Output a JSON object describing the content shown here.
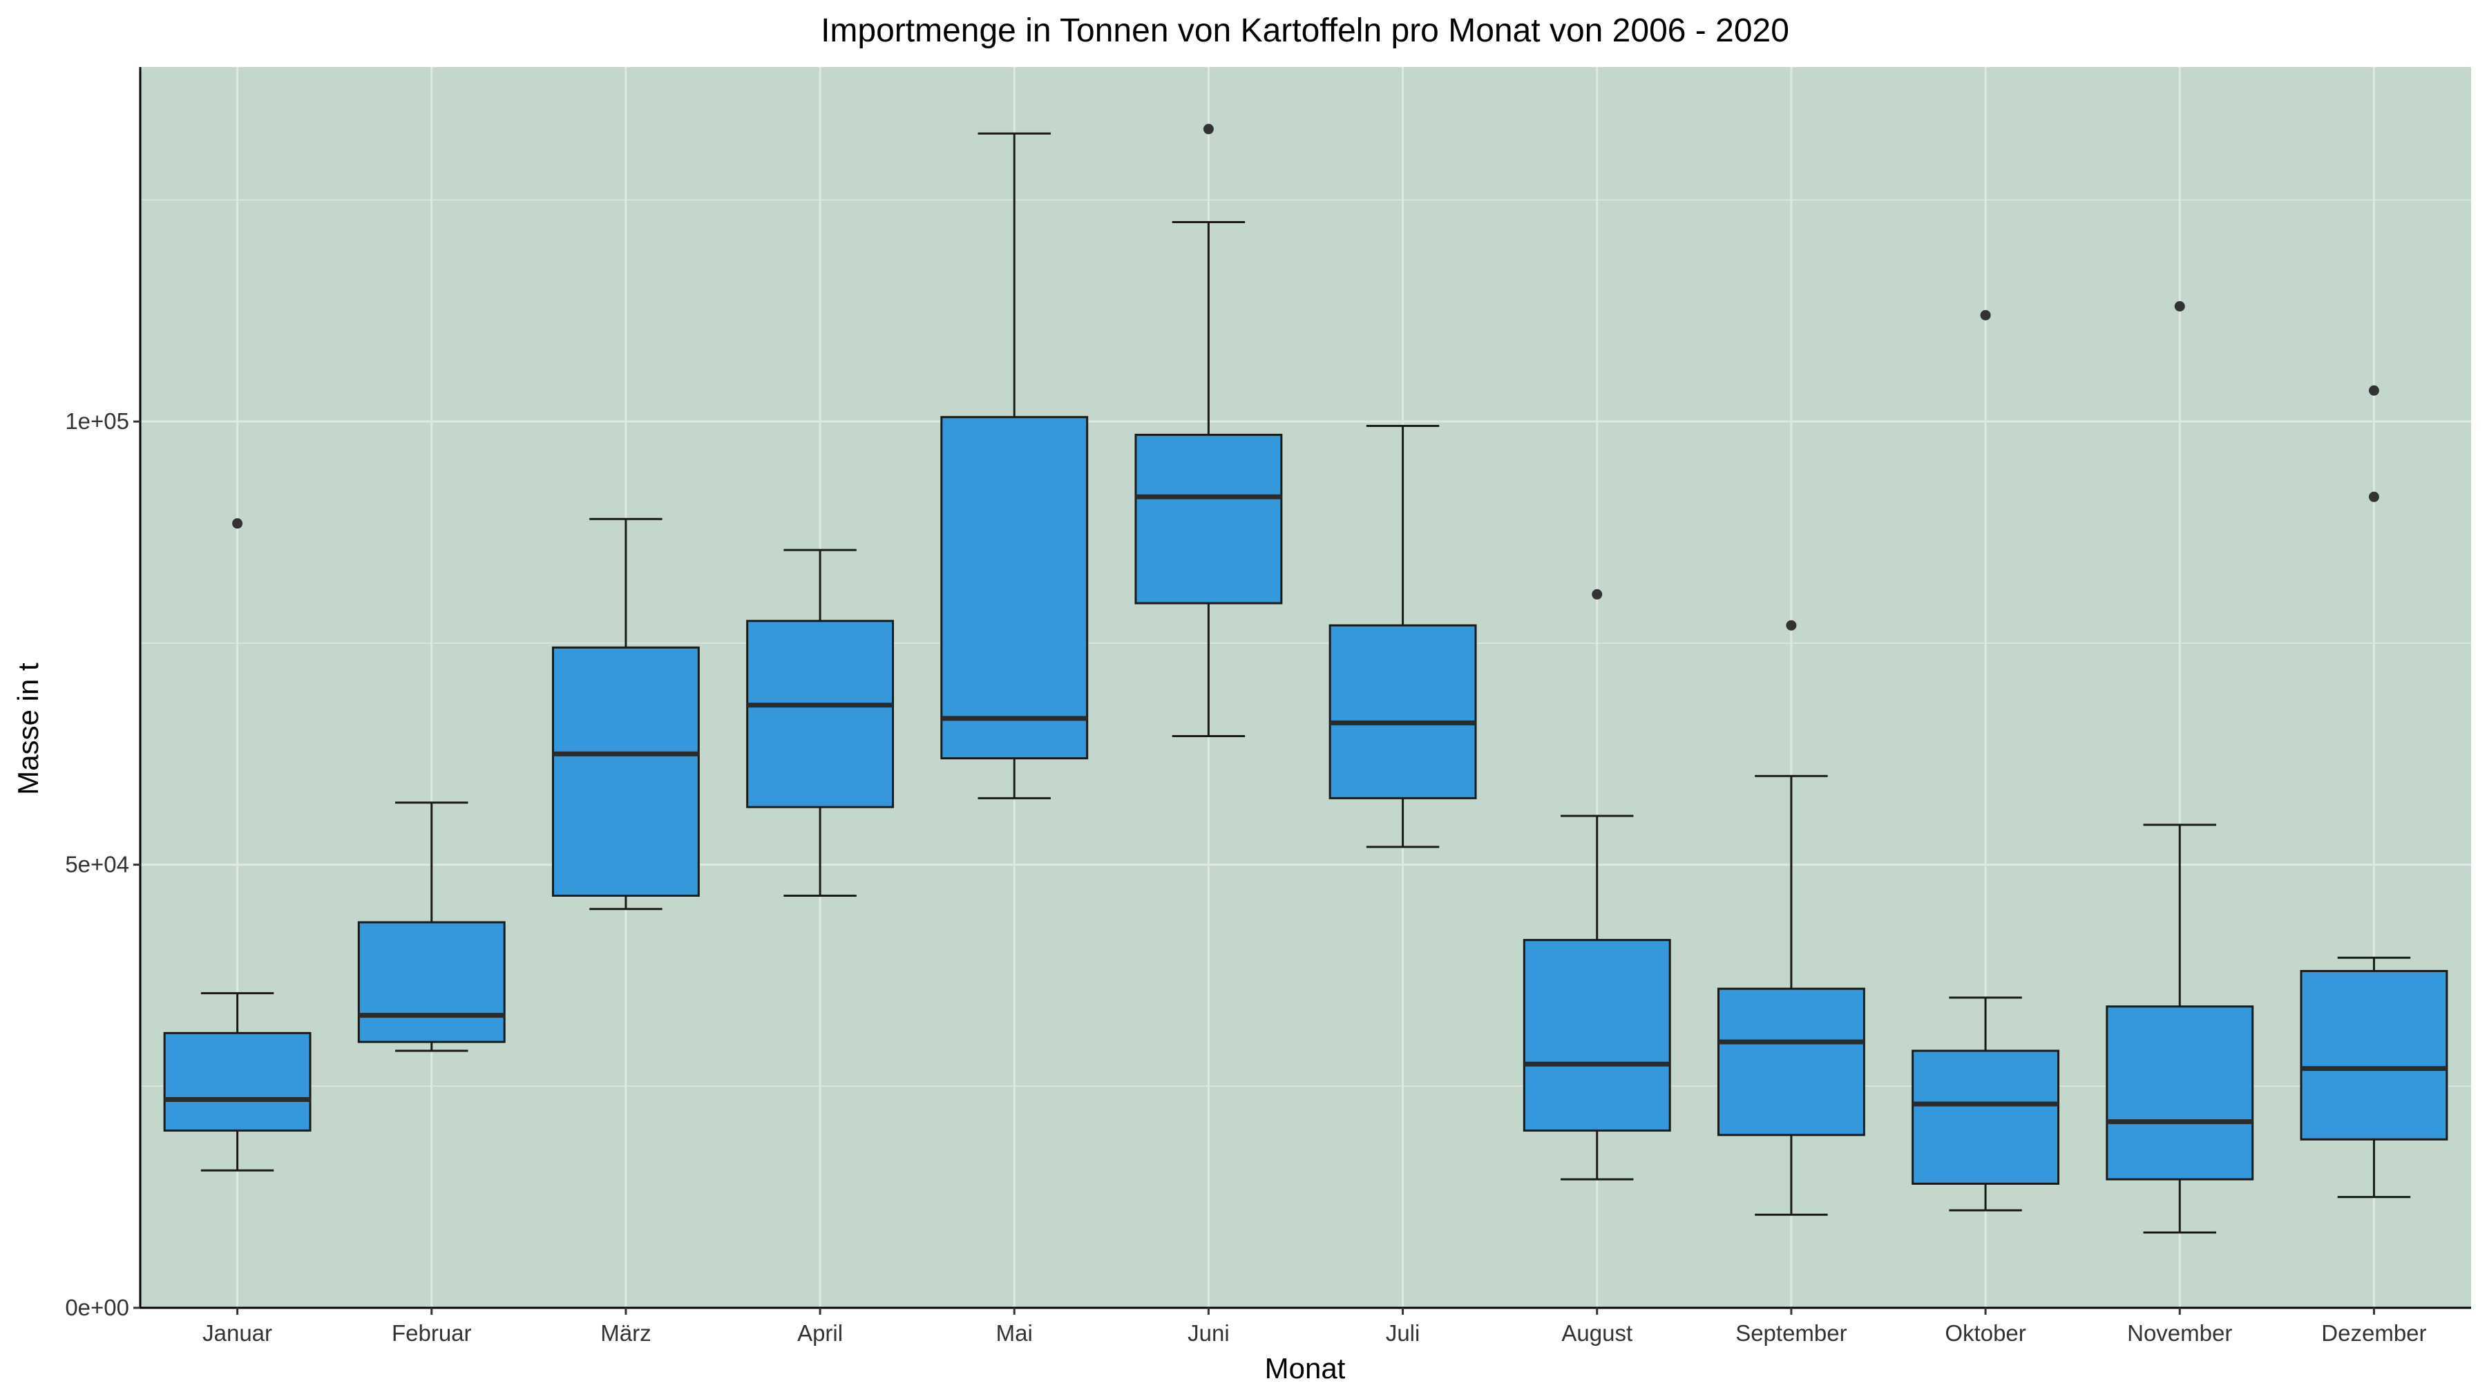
{
  "chart_data": {
    "type": "boxplot",
    "title": "Importmenge in Tonnen von Kartoffeln pro Monat von 2006 - 2020",
    "xlabel": "Monat",
    "ylabel": "Masse in t",
    "ylim": [
      0,
      140000
    ],
    "yticks": [
      0,
      50000,
      100000
    ],
    "ytick_labels": [
      "0e+00",
      "5e+04",
      "1e+05"
    ],
    "grid": true,
    "colors": {
      "panel": "#c3d7cd",
      "box_fill": "#3598db",
      "box_line": "#1a1a1a",
      "median": "#2b2b2b",
      "grid": "#dfe9e4",
      "outlier": "#333333"
    },
    "categories": [
      "Januar",
      "Februar",
      "März",
      "April",
      "Mai",
      "Juni",
      "Juli",
      "August",
      "September",
      "Oktober",
      "November",
      "Dezember"
    ],
    "boxes": [
      {
        "whisker_low": 15500,
        "q1": 20000,
        "median": 23500,
        "q3": 31000,
        "whisker_high": 35500,
        "outliers": [
          88500
        ]
      },
      {
        "whisker_low": 29000,
        "q1": 30000,
        "median": 33000,
        "q3": 43500,
        "whisker_high": 57000,
        "outliers": []
      },
      {
        "whisker_low": 45000,
        "q1": 46500,
        "median": 62500,
        "q3": 74500,
        "whisker_high": 89000,
        "outliers": []
      },
      {
        "whisker_low": 46500,
        "q1": 56500,
        "median": 68000,
        "q3": 77500,
        "whisker_high": 85500,
        "outliers": []
      },
      {
        "whisker_low": 57500,
        "q1": 62000,
        "median": 66500,
        "q3": 100500,
        "whisker_high": 132500,
        "outliers": []
      },
      {
        "whisker_low": 64500,
        "q1": 79500,
        "median": 91500,
        "q3": 98500,
        "whisker_high": 122500,
        "outliers": [
          133000
        ]
      },
      {
        "whisker_low": 52000,
        "q1": 57500,
        "median": 66000,
        "q3": 77000,
        "whisker_high": 99500,
        "outliers": []
      },
      {
        "whisker_low": 14500,
        "q1": 20000,
        "median": 27500,
        "q3": 41500,
        "whisker_high": 55500,
        "outliers": [
          80500
        ]
      },
      {
        "whisker_low": 10500,
        "q1": 19500,
        "median": 30000,
        "q3": 36000,
        "whisker_high": 60000,
        "outliers": [
          77000
        ]
      },
      {
        "whisker_low": 11000,
        "q1": 14000,
        "median": 23000,
        "q3": 29000,
        "whisker_high": 35000,
        "outliers": [
          112000
        ]
      },
      {
        "whisker_low": 8500,
        "q1": 14500,
        "median": 21000,
        "q3": 34000,
        "whisker_high": 54500,
        "outliers": [
          113000
        ]
      },
      {
        "whisker_low": 12500,
        "q1": 19000,
        "median": 27000,
        "q3": 38000,
        "whisker_high": 39500,
        "outliers": [
          103500,
          91500
        ]
      }
    ]
  }
}
